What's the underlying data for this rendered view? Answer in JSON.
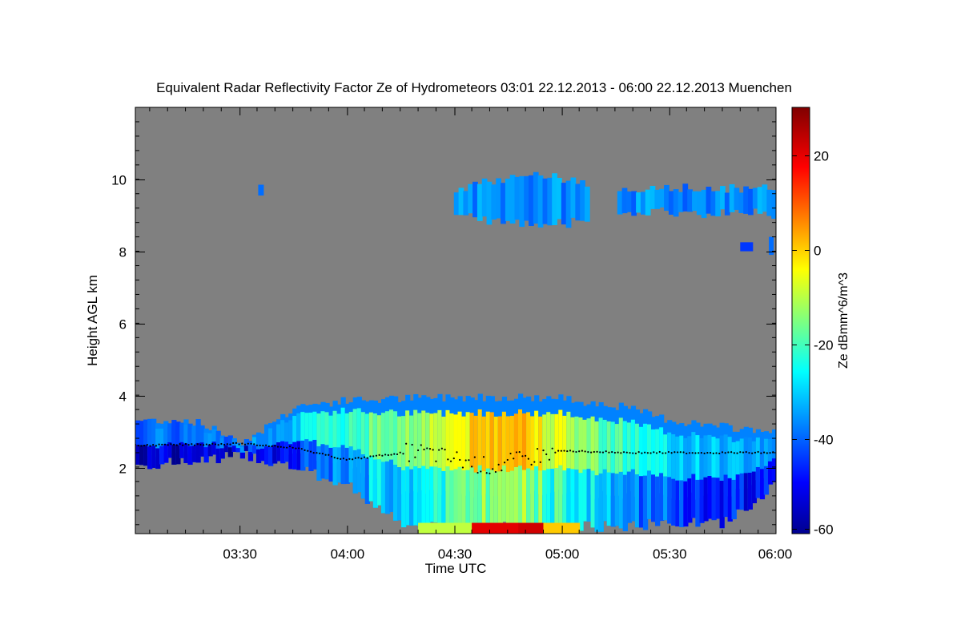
{
  "chart_data": {
    "type": "heatmap",
    "title": "Equivalent Radar Reflectivity Factor Ze of Hydrometeors   03:01 22.12.2013 - 06:00 22.12.2013 Muenchen",
    "xlabel": "Time UTC",
    "ylabel": "Height AGL km",
    "colorbar_label": "Ze dBmm^6/m^3",
    "x_range": [
      "03:01",
      "06:00"
    ],
    "x_ticks": [
      "03:30",
      "04:00",
      "04:30",
      "05:00",
      "05:30",
      "06:00"
    ],
    "y_range_km": [
      0.15,
      12.0
    ],
    "y_ticks": [
      "2",
      "4",
      "6",
      "8",
      "10"
    ],
    "colorbar_range": [
      -61,
      30
    ],
    "colorbar_ticks": [
      "20",
      "0",
      "-20",
      "-40",
      "-60"
    ],
    "colormap": [
      "#00008f",
      "#0000ff",
      "#00ffff",
      "#ffff00",
      "#ff0000",
      "#800000"
    ],
    "no_data_color": "#808080",
    "cloud_layers": [
      {
        "name": "lower-cloud",
        "time_start": "03:01",
        "time_end": "06:00",
        "top_km": [
          3.3,
          3.3,
          2.7,
          3.7,
          3.85,
          3.9,
          3.95,
          3.95,
          3.9,
          3.7,
          3.3,
          3.1,
          3.0
        ],
        "base_km": [
          1.9,
          2.0,
          2.2,
          1.8,
          1.3,
          0.2,
          0.2,
          0.2,
          0.2,
          0.2,
          0.3,
          0.3,
          1.4
        ],
        "peak_ze_dbz": [
          -40,
          -40,
          -38,
          -30,
          -20,
          -15,
          -5,
          5,
          -10,
          -20,
          -30,
          -33,
          -35
        ]
      },
      {
        "name": "upper-cloud",
        "time_start": "04:30",
        "time_end": "06:00",
        "top_km": 9.8,
        "base_km": 8.9,
        "peak_ze_dbz": -40
      }
    ],
    "cloud_base_km": [
      [
        "03:01",
        2.6
      ],
      [
        "03:30",
        2.65
      ],
      [
        "03:45",
        2.55
      ],
      [
        "04:00",
        2.2
      ],
      [
        "04:20",
        2.45
      ],
      [
        "04:40",
        2.0
      ],
      [
        "05:00",
        2.45
      ],
      [
        "05:20",
        2.4
      ],
      [
        "05:40",
        2.4
      ],
      [
        "06:00",
        2.4
      ]
    ]
  }
}
